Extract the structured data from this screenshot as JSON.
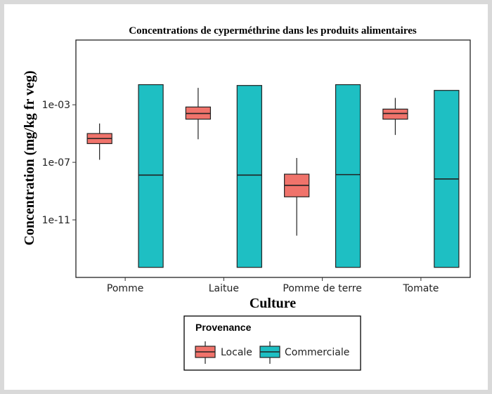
{
  "chart_data": {
    "type": "boxplot",
    "title": "Concentrations de cyperméthrine dans les produits alimentaires",
    "xlabel": "Culture",
    "ylabel": "Concentration (mg/kg fr veg)",
    "yscale": "log10",
    "ylim_log10": [
      -15,
      1.5
    ],
    "yticks": [
      "1e-03",
      "1e-07",
      "1e-11"
    ],
    "categories": [
      "Pomme",
      "Laitue",
      "Pomme de terre",
      "Tomate"
    ],
    "legend": {
      "title": "Provenance",
      "position": "bottom",
      "entries": [
        "Locale",
        "Commerciale"
      ]
    },
    "series": [
      {
        "name": "Locale",
        "color": "#f0736b",
        "boxes": [
          {
            "category": "Pomme",
            "min": 1.5e-07,
            "q1": 2e-06,
            "median": 4.5e-06,
            "q3": 1e-05,
            "max": 5e-05
          },
          {
            "category": "Laitue",
            "min": 4e-06,
            "q1": 0.0001,
            "median": 0.00025,
            "q3": 0.0007,
            "max": 0.015
          },
          {
            "category": "Pomme de terre",
            "min": 8e-13,
            "q1": 4e-10,
            "median": 2.5e-09,
            "q3": 1.5e-08,
            "max": 2e-07
          },
          {
            "category": "Tomate",
            "min": 8e-06,
            "q1": 0.0001,
            "median": 0.00025,
            "q3": 0.0005,
            "max": 0.003
          }
        ]
      },
      {
        "name": "Commerciale",
        "color": "#1ebfc3",
        "boxes": [
          {
            "category": "Pomme",
            "min": 5e-15,
            "q1": 5e-15,
            "median": 1.3e-08,
            "q3": 0.025,
            "max": 0.025
          },
          {
            "category": "Laitue",
            "min": 5e-15,
            "q1": 5e-15,
            "median": 1.3e-08,
            "q3": 0.022,
            "max": 0.022
          },
          {
            "category": "Pomme de terre",
            "min": 5e-15,
            "q1": 5e-15,
            "median": 1.4e-08,
            "q3": 0.025,
            "max": 0.025
          },
          {
            "category": "Tomate",
            "min": 5e-15,
            "q1": 5e-15,
            "median": 7e-09,
            "q3": 0.01,
            "max": 0.01
          }
        ]
      }
    ]
  }
}
